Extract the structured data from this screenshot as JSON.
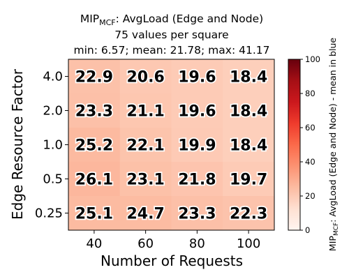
{
  "title": {
    "metric_main": "MIP",
    "metric_sub": "MCF",
    "metric_rest": ": AvgLoad (Edge and Node)",
    "line2": "75 values per square",
    "line3": "min: 6.57; mean: 21.78; max: 41.17"
  },
  "chart_data": {
    "type": "heatmap",
    "xlabel": "Number of Requests",
    "ylabel": "Edge Resource Factor",
    "x_categories": [
      "40",
      "60",
      "80",
      "100"
    ],
    "y_categories": [
      "4.0",
      "2.0",
      "1.0",
      "0.5",
      "0.25"
    ],
    "values": [
      [
        22.9,
        20.6,
        19.6,
        18.4
      ],
      [
        23.3,
        21.1,
        19.6,
        18.4
      ],
      [
        25.2,
        22.1,
        19.9,
        18.4
      ],
      [
        26.1,
        23.1,
        21.8,
        19.7
      ],
      [
        25.1,
        24.7,
        23.3,
        22.3
      ]
    ],
    "colorbar": {
      "colormap": "Reds",
      "range": [
        0,
        100
      ],
      "ticks": [
        "0",
        "20",
        "40",
        "60",
        "80",
        "100"
      ],
      "label_main": "MIP",
      "label_sub": "MCF",
      "label_rest": ": AvgLoad (Edge and Node) - ",
      "label_blue": "mean in blue"
    }
  }
}
